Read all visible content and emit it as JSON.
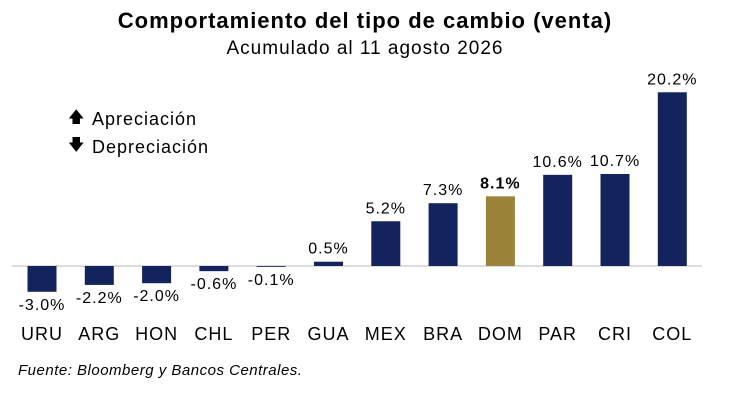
{
  "chart_data": {
    "type": "bar",
    "title": "Comportamiento del tipo de cambio (venta)",
    "subtitle": "Acumulado al 11 agosto 2026",
    "categories": [
      "URU",
      "ARG",
      "HON",
      "CHL",
      "PER",
      "GUA",
      "MEX",
      "BRA",
      "DOM",
      "PAR",
      "CRI",
      "COL"
    ],
    "values": [
      -3.0,
      -2.2,
      -2.0,
      -0.6,
      -0.1,
      0.5,
      5.2,
      7.3,
      8.1,
      10.6,
      10.7,
      20.2
    ],
    "value_labels": [
      "-3.0%",
      "-2.2%",
      "-2.0%",
      "-0.6%",
      "-0.1%",
      "0.5%",
      "5.2%",
      "7.3%",
      "8.1%",
      "10.6%",
      "10.7%",
      "20.2%"
    ],
    "highlight": "DOM",
    "colors": {
      "bar": "#13235e",
      "highlight": "#9b8339"
    },
    "legend": [
      {
        "icon": "arrow-up-icon",
        "label": "Apreciación"
      },
      {
        "icon": "arrow-down-icon",
        "label": "Depreciación"
      }
    ],
    "legend_position": "top-left",
    "ylim": [
      -3.0,
      20.2
    ],
    "grid": false
  },
  "footer": {
    "source": "Fuente: Bloomberg y Bancos Centrales."
  }
}
